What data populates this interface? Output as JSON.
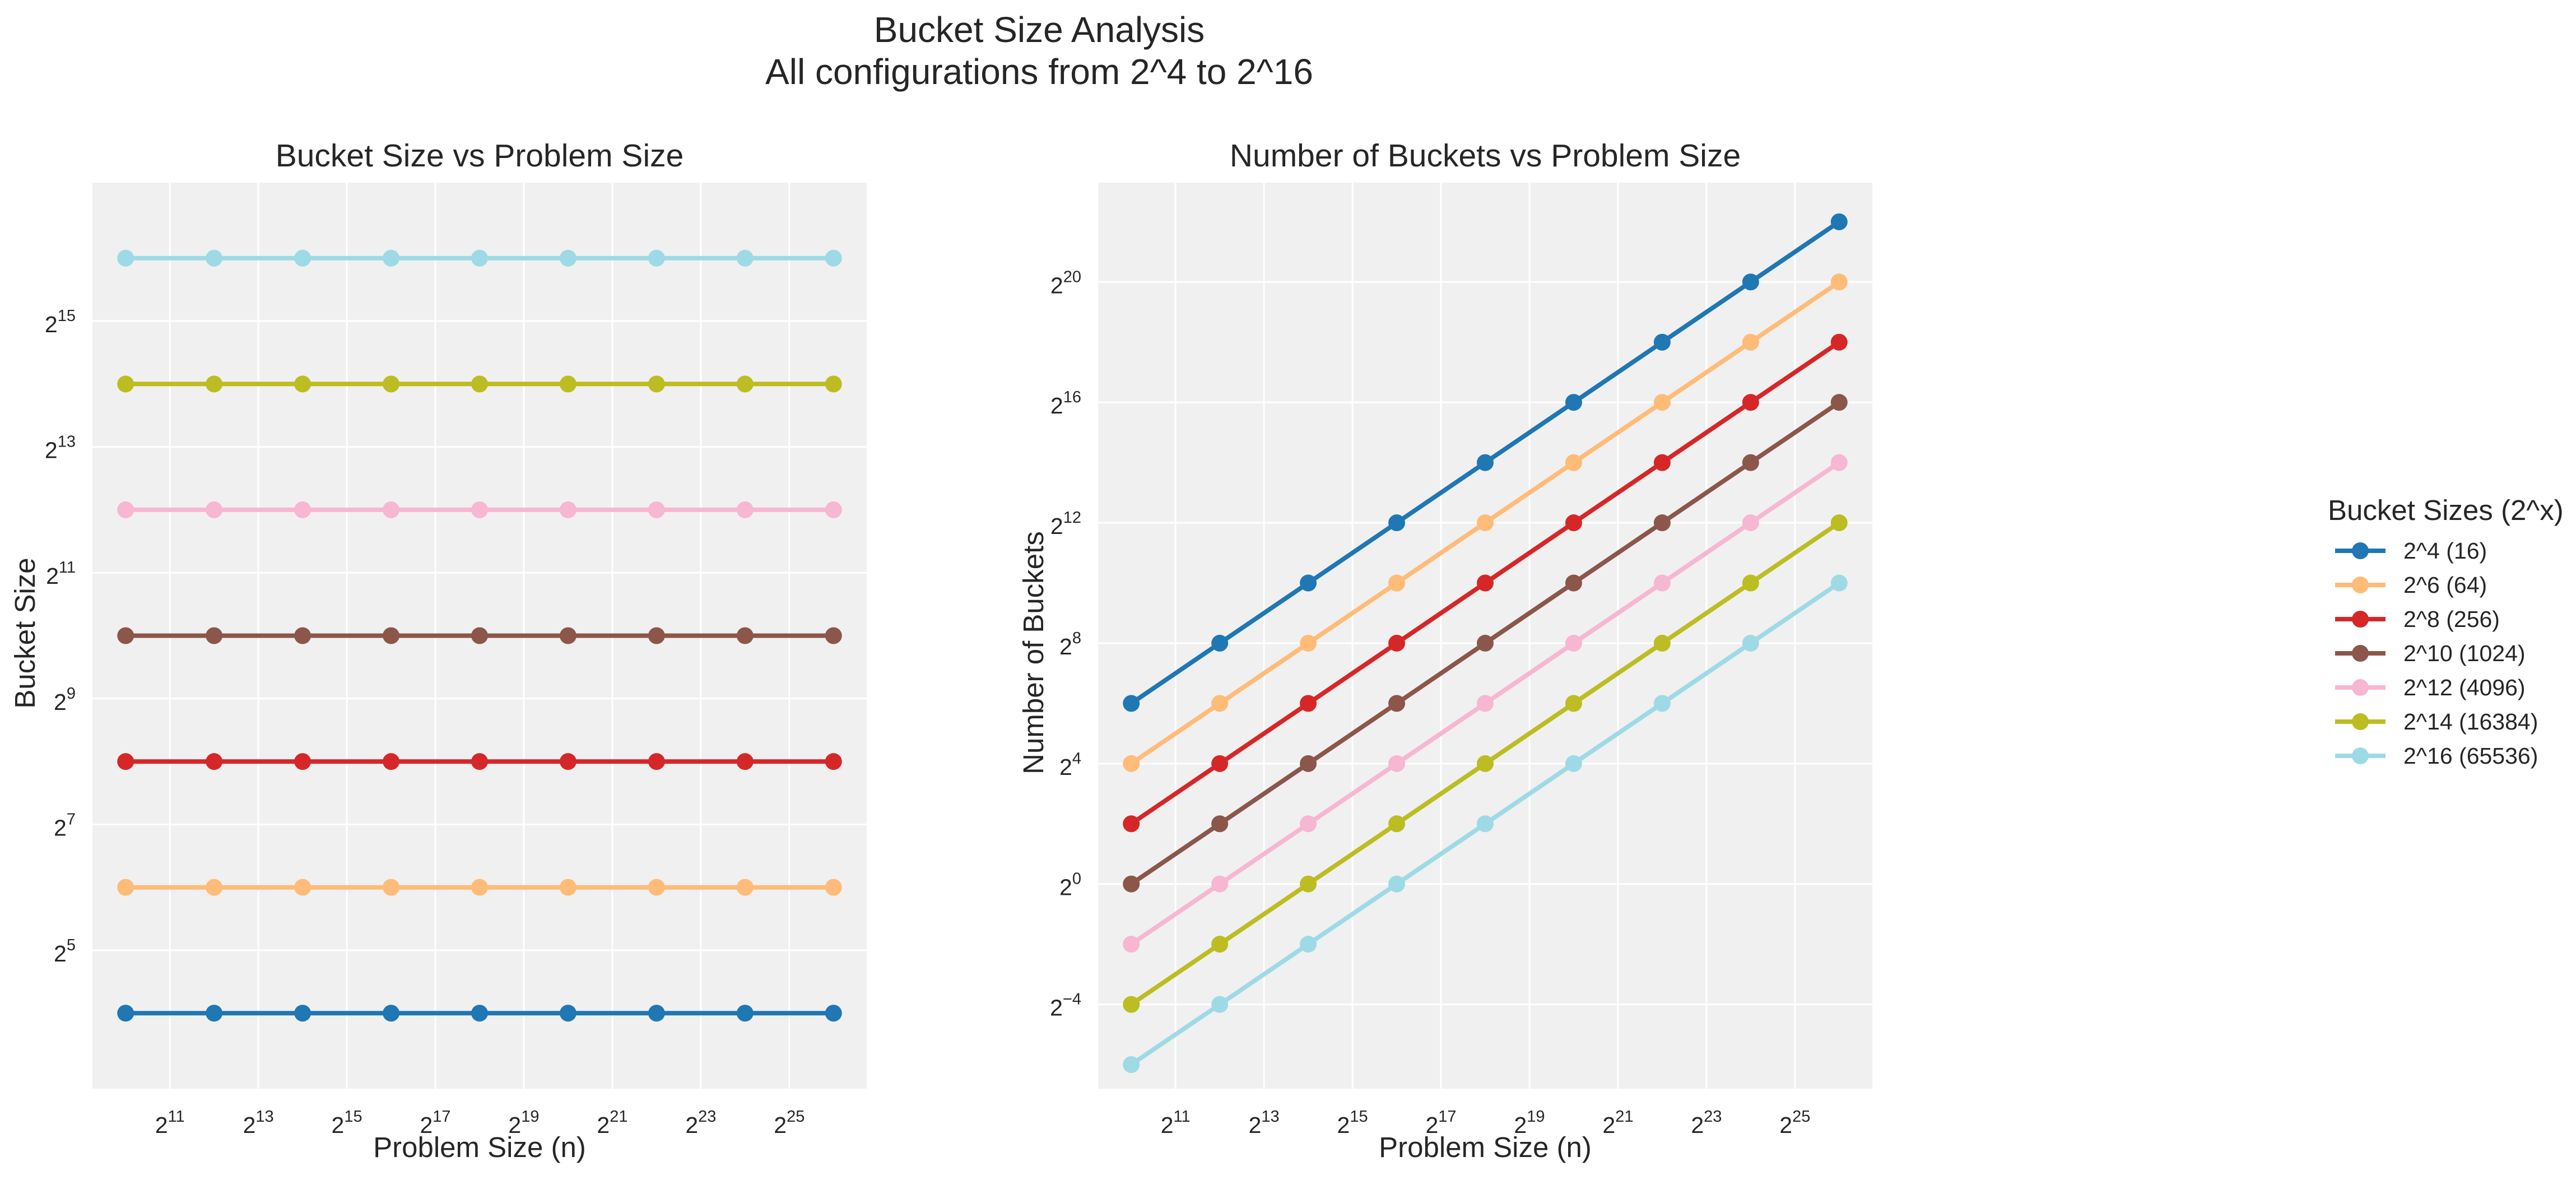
{
  "figure": {
    "title_line1": "Bucket Size Analysis",
    "title_line2": "All configurations from 2^4 to 2^16"
  },
  "legend": {
    "title": "Bucket Sizes (2^x)",
    "placement": "outside-right",
    "entries": [
      "2^4 (16)",
      "2^6 (64)",
      "2^8 (256)",
      "2^10 (1024)",
      "2^12 (4096)",
      "2^14 (16384)",
      "2^16 (65536)"
    ]
  },
  "colors": [
    "#1f77b4",
    "#ffbb78",
    "#d62728",
    "#8c564b",
    "#f7b6d2",
    "#bcbd22",
    "#9edae5"
  ],
  "chart_data": [
    {
      "type": "line",
      "title": "Bucket Size vs Problem Size",
      "xlabel": "Problem Size (n)",
      "ylabel": "Bucket Size",
      "xscale": "log2",
      "yscale": "log2",
      "x": [
        1024,
        4096,
        16384,
        65536,
        262144,
        1048576,
        4194304,
        16777216,
        67108864
      ],
      "x_ticks": [
        "11",
        "13",
        "15",
        "17",
        "19",
        "21",
        "23",
        "25"
      ],
      "y_ticks": [
        "5",
        "7",
        "9",
        "11",
        "13",
        "15"
      ],
      "grid": true,
      "series": [
        {
          "name": "2^4 (16)",
          "values": [
            16,
            16,
            16,
            16,
            16,
            16,
            16,
            16,
            16
          ]
        },
        {
          "name": "2^6 (64)",
          "values": [
            64,
            64,
            64,
            64,
            64,
            64,
            64,
            64,
            64
          ]
        },
        {
          "name": "2^8 (256)",
          "values": [
            256,
            256,
            256,
            256,
            256,
            256,
            256,
            256,
            256
          ]
        },
        {
          "name": "2^10 (1024)",
          "values": [
            1024,
            1024,
            1024,
            1024,
            1024,
            1024,
            1024,
            1024,
            1024
          ]
        },
        {
          "name": "2^12 (4096)",
          "values": [
            4096,
            4096,
            4096,
            4096,
            4096,
            4096,
            4096,
            4096,
            4096
          ]
        },
        {
          "name": "2^14 (16384)",
          "values": [
            16384,
            16384,
            16384,
            16384,
            16384,
            16384,
            16384,
            16384,
            16384
          ]
        },
        {
          "name": "2^16 (65536)",
          "values": [
            65536,
            65536,
            65536,
            65536,
            65536,
            65536,
            65536,
            65536,
            65536
          ]
        }
      ]
    },
    {
      "type": "line",
      "title": "Number of Buckets vs Problem Size",
      "xlabel": "Problem Size (n)",
      "ylabel": "Number of Buckets",
      "xscale": "log2",
      "yscale": "log2",
      "x": [
        1024,
        4096,
        16384,
        65536,
        262144,
        1048576,
        4194304,
        16777216,
        67108864
      ],
      "x_ticks": [
        "11",
        "13",
        "15",
        "17",
        "19",
        "21",
        "23",
        "25"
      ],
      "y_ticks": [
        "−4",
        "0",
        "4",
        "8",
        "12",
        "16",
        "20"
      ],
      "grid": true,
      "series": [
        {
          "name": "2^4 (16)",
          "values": [
            64,
            256,
            1024,
            4096,
            16384,
            65536,
            262144,
            1048576,
            4194304
          ]
        },
        {
          "name": "2^6 (64)",
          "values": [
            16,
            64,
            256,
            1024,
            4096,
            16384,
            65536,
            262144,
            1048576
          ]
        },
        {
          "name": "2^8 (256)",
          "values": [
            4,
            16,
            64,
            256,
            1024,
            4096,
            16384,
            65536,
            262144
          ]
        },
        {
          "name": "2^10 (1024)",
          "values": [
            1,
            4,
            16,
            64,
            256,
            1024,
            4096,
            16384,
            65536
          ]
        },
        {
          "name": "2^12 (4096)",
          "values": [
            0.25,
            1,
            4,
            16,
            64,
            256,
            1024,
            4096,
            16384
          ]
        },
        {
          "name": "2^14 (16384)",
          "values": [
            0.0625,
            0.25,
            1,
            4,
            16,
            64,
            256,
            1024,
            4096
          ]
        },
        {
          "name": "2^16 (65536)",
          "values": [
            0.015625,
            0.0625,
            0.25,
            1,
            4,
            16,
            64,
            256,
            1024
          ]
        }
      ]
    }
  ]
}
